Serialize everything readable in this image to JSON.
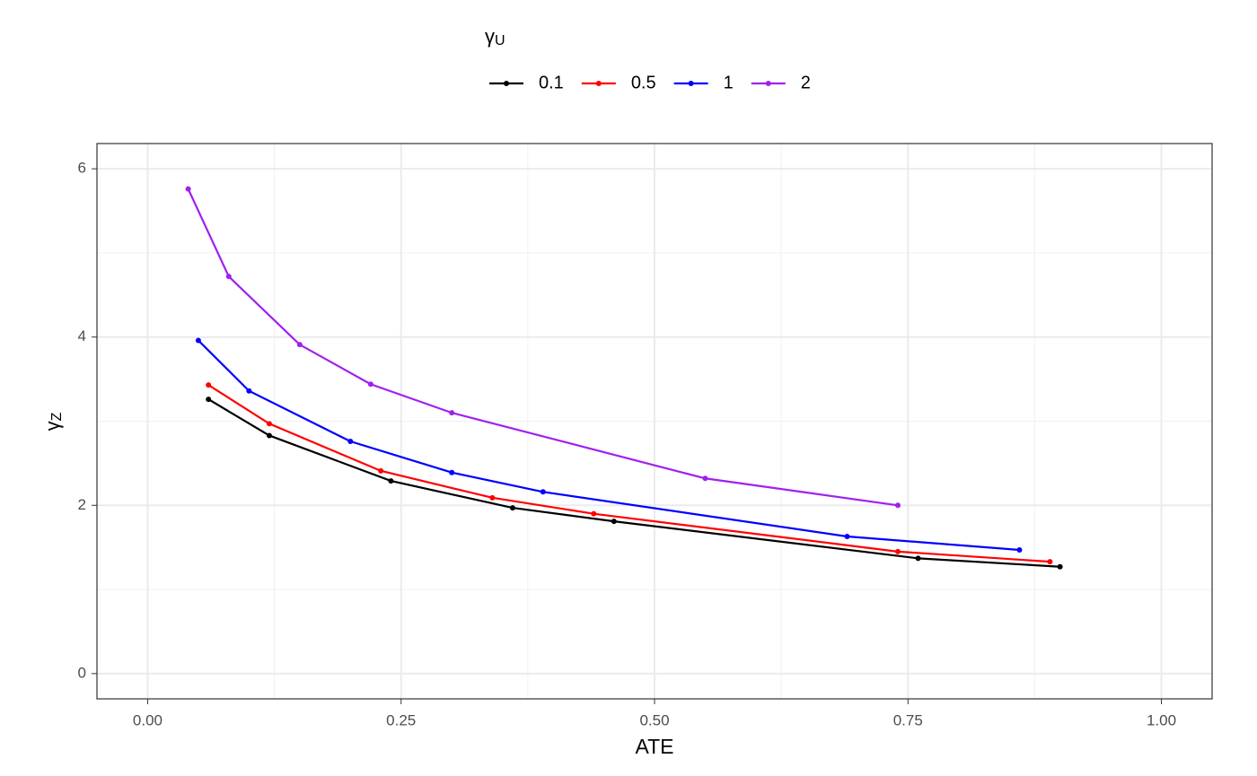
{
  "chart_data": {
    "type": "line",
    "x_label": "ATE",
    "y_label": {
      "symbol": "γ",
      "subscript": "Z"
    },
    "legend_title": {
      "symbol": "γ",
      "subscript": "U"
    },
    "legend_position": "top",
    "grid": true,
    "xlim": [
      -0.05,
      1.05
    ],
    "ylim": [
      -0.3,
      6.3
    ],
    "xticks": [
      {
        "value": 0,
        "label": "0.00"
      },
      {
        "value": 0.25,
        "label": "0.25"
      },
      {
        "value": 0.5,
        "label": "0.50"
      },
      {
        "value": 0.75,
        "label": "0.75"
      },
      {
        "value": 1,
        "label": "1.00"
      }
    ],
    "yticks": [
      0,
      2,
      4,
      6
    ],
    "series": [
      {
        "name": "0.1",
        "color": "#000000",
        "x": [
          0.06,
          0.12,
          0.24,
          0.36,
          0.46,
          0.76,
          0.9
        ],
        "values": [
          3.26,
          2.83,
          2.29,
          1.97,
          1.81,
          1.37,
          1.27
        ]
      },
      {
        "name": "0.5",
        "color": "#ff0000",
        "x": [
          0.06,
          0.12,
          0.23,
          0.34,
          0.44,
          0.74,
          0.89
        ],
        "values": [
          3.43,
          2.97,
          2.41,
          2.09,
          1.9,
          1.45,
          1.33
        ]
      },
      {
        "name": "1",
        "color": "#0000ff",
        "x": [
          0.05,
          0.1,
          0.2,
          0.3,
          0.39,
          0.69,
          0.86
        ],
        "values": [
          3.96,
          3.36,
          2.76,
          2.39,
          2.16,
          1.63,
          1.47
        ]
      },
      {
        "name": "2",
        "color": "#a020f0",
        "x": [
          0.04,
          0.08,
          0.15,
          0.22,
          0.3,
          0.55,
          0.74
        ],
        "values": [
          5.76,
          4.72,
          3.91,
          3.44,
          3.1,
          2.32,
          2.0
        ]
      }
    ]
  }
}
